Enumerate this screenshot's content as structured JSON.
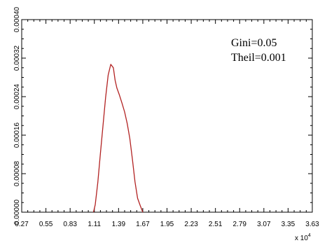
{
  "chart_data": {
    "type": "line",
    "title": "",
    "xlabel": "",
    "ylabel": "",
    "x_multiplier_label": "x 10",
    "x_multiplier_exponent": "4",
    "xlim": [
      0.27,
      3.63
    ],
    "ylim": [
      0,
      0.0004
    ],
    "x_ticks": [
      "0.27",
      "0.55",
      "0.83",
      "1.11",
      "1.39",
      "1.67",
      "1.95",
      "2.23",
      "2.51",
      "2.79",
      "3.07",
      "3.35",
      "3.63"
    ],
    "y_ticks": [
      "0.00000",
      "0.00008",
      "0.00016",
      "0.00024",
      "0.00032",
      "0.00040"
    ],
    "grid": false,
    "annotations": [
      "Gini=0.05",
      "Theil=0.001"
    ],
    "series": [
      {
        "color": "#b22222",
        "x": [
          1.1,
          1.12,
          1.15,
          1.18,
          1.21,
          1.24,
          1.27,
          1.3,
          1.33,
          1.35,
          1.37,
          1.4,
          1.43,
          1.46,
          1.49,
          1.52,
          1.55,
          1.58,
          1.61,
          1.64,
          1.67
        ],
        "y": [
          0.0,
          1.55e-05,
          6.2e-05,
          0.000122,
          0.00018,
          0.000238,
          0.000285,
          0.000307,
          0.0003,
          0.000274,
          0.000258,
          0.000243,
          0.000226,
          0.000208,
          0.000184,
          0.000153,
          0.00011,
          6.3e-05,
          2.9e-05,
          1.4e-05,
          0.0
        ]
      }
    ]
  }
}
